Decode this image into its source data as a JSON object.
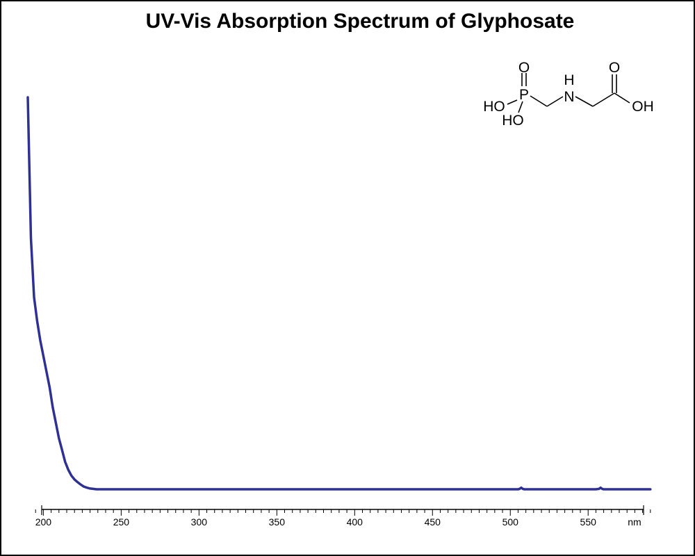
{
  "chart_data": {
    "type": "line",
    "title": "UV-Vis Absorption Spectrum of Glyphosate",
    "xlabel": "nm",
    "ylabel": "",
    "xlim": [
      190,
      595
    ],
    "ylim": [
      0,
      1
    ],
    "grid": false,
    "legend": "none",
    "x_tick_labels": [
      "200",
      "250",
      "300",
      "350",
      "400",
      "450",
      "500",
      "550"
    ],
    "colors": {
      "line": "#2e3192",
      "axis": "#000000",
      "text": "#000000"
    },
    "series": [
      {
        "x": [
          190,
          192,
          194,
          196,
          198,
          200,
          202,
          204,
          206,
          208,
          210,
          212,
          214,
          216,
          218,
          220,
          222,
          224,
          226,
          228,
          230,
          232,
          234,
          236,
          238,
          240,
          242,
          244,
          246,
          248,
          250,
          252,
          255,
          260,
          300,
          350,
          400,
          450,
          500,
          505,
          506,
          507,
          508,
          509,
          510,
          520,
          550,
          555,
          557,
          558,
          559,
          560,
          570,
          590
        ],
        "y": [
          1.0,
          0.64,
          0.49,
          0.43,
          0.38,
          0.34,
          0.3,
          0.26,
          0.21,
          0.17,
          0.13,
          0.1,
          0.07,
          0.05,
          0.035,
          0.025,
          0.018,
          0.012,
          0.007,
          0.004,
          0.002,
          0.001,
          0.0,
          0.0,
          0.0,
          0.0,
          0.0,
          0.0,
          0.0,
          0.0,
          0.0,
          0.0,
          0.0,
          0.0,
          0.0,
          0.0,
          0.0,
          0.0,
          0.0,
          0.0,
          0.001,
          0.004,
          0.001,
          0.0,
          0.0,
          0.0,
          0.0,
          0.0,
          0.001,
          0.004,
          0.001,
          0.0,
          0.0,
          0.0
        ]
      }
    ]
  },
  "molecule": {
    "atoms": {
      "o_top": "O",
      "p": "P",
      "ho_left": "HO",
      "ho_bottom": "HO",
      "h": "H",
      "n": "N",
      "o_carbonyl": "O",
      "oh": "OH"
    }
  }
}
